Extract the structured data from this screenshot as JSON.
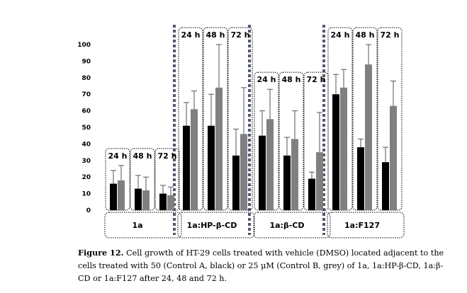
{
  "chart_data": {
    "type": "bar",
    "ylim": [
      0,
      100
    ],
    "yticks": [
      "0",
      "10",
      "20",
      "30",
      "40",
      "50",
      "60",
      "70",
      "80",
      "90",
      "100"
    ],
    "groups": [
      "1a",
      "1a:HP-β-CD",
      "1a:β-CD",
      "1a:F127"
    ],
    "timepoints": [
      "24 h",
      "48 h",
      "72 h"
    ],
    "colors": {
      "control_a": "#000000",
      "control_b": "#808080",
      "separator": "#505a6e"
    },
    "series": [
      {
        "values": [
          [
            16,
            13,
            10
          ],
          [
            51,
            51,
            33
          ],
          [
            45,
            33,
            19
          ],
          [
            70,
            38,
            29
          ]
        ],
        "errors": [
          [
            8,
            8,
            5
          ],
          [
            14,
            19,
            16
          ],
          [
            15,
            11,
            4
          ],
          [
            12,
            5,
            9
          ]
        ]
      },
      {
        "values": [
          [
            18,
            12,
            9
          ],
          [
            61,
            74,
            46
          ],
          [
            55,
            43,
            35
          ],
          [
            74,
            88,
            63
          ]
        ],
        "errors": [
          [
            9,
            8,
            5
          ],
          [
            11,
            26,
            28
          ],
          [
            18,
            17,
            24
          ],
          [
            11,
            12,
            15
          ]
        ]
      }
    ]
  },
  "caption": {
    "label": "Figure 12.",
    "text": "Cell growth of HT-29 cells treated with vehicle (DMSO) located adjacent to the cells treated with 50 (Control A, black) or 25 μM (Control B, grey) of 1a, 1a:HP-β-CD, 1a:β-CD or 1a:F127 after 24, 48 and 72 h."
  }
}
